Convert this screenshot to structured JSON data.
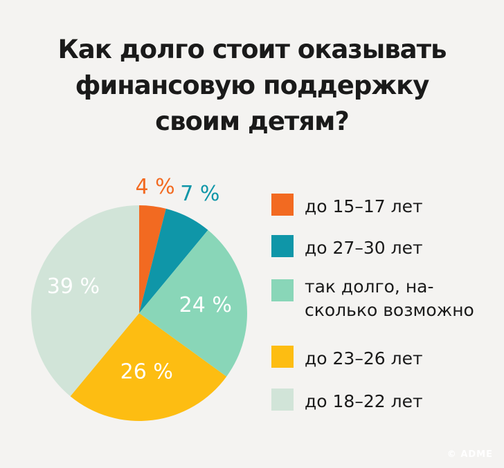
{
  "title_lines": [
    "Как долго стоит оказывать",
    "финансовую поддержку",
    "своим детям?"
  ],
  "chart_data": {
    "type": "pie",
    "title": "Как долго стоит оказывать финансовую поддержку своим детям?",
    "slices": [
      {
        "label": "до 15–17 лет",
        "value": 4,
        "display": "4 %",
        "color": "#f26a21",
        "label_color": "#f26a21"
      },
      {
        "label": "до 27–30 лет",
        "value": 7,
        "display": "7 %",
        "color": "#0f96a8",
        "label_color": "#0f96a8"
      },
      {
        "label": "так долго, насколько возможно",
        "value": 24,
        "display": "24 %",
        "color": "#89d6b8",
        "label_color": "#ffffff"
      },
      {
        "label": "до 23–26 лет",
        "value": 26,
        "display": "26 %",
        "color": "#fdbd12",
        "label_color": "#ffffff"
      },
      {
        "label": "до 18–22 лет",
        "value": 39,
        "display": "39 %",
        "color": "#d1e4d8",
        "label_color": "#ffffff"
      }
    ],
    "legend_placement": "right"
  },
  "legend": [
    {
      "lines": [
        "до 15–17 лет"
      ],
      "color": "#f26a21"
    },
    {
      "lines": [
        "до 27–30 лет"
      ],
      "color": "#0f96a8"
    },
    {
      "lines": [
        "так долго, на-",
        "сколько возможно"
      ],
      "color": "#89d6b8"
    },
    {
      "lines": [
        "до 23–26 лет"
      ],
      "color": "#fdbd12"
    },
    {
      "lines": [
        "до 18–22 лет"
      ],
      "color": "#d1e4d8"
    }
  ],
  "credit": "© ADME"
}
